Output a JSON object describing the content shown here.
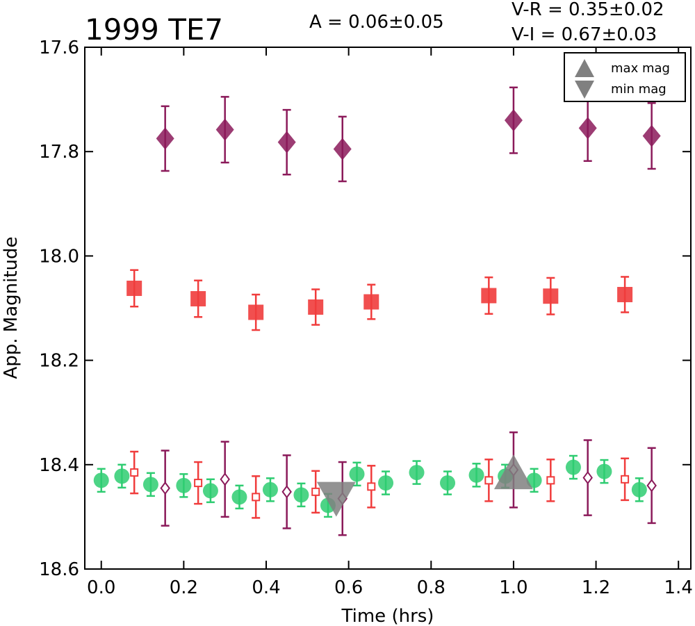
{
  "chart_data": {
    "type": "scatter",
    "title": "1999 TE7",
    "annotations": {
      "amplitude": "A  = 0.06±0.05",
      "v_r": "V-R = 0.35±0.02",
      "v_i": "V-I  = 0.67±0.03"
    },
    "xlabel": "Time (hrs)",
    "ylabel": "App. Magnitude",
    "xlim": [
      -0.04,
      1.43
    ],
    "ylim": [
      17.6,
      18.6
    ],
    "y_inverted": true,
    "x_ticks": [
      0.0,
      0.2,
      0.4,
      0.6,
      0.8,
      1.0,
      1.2,
      1.4
    ],
    "x_tick_labels": [
      "0.0",
      "0.2",
      "0.4",
      "0.6",
      "0.8",
      "1.0",
      "1.2",
      "1.4"
    ],
    "y_ticks": [
      17.6,
      17.8,
      18.0,
      18.2,
      18.4,
      18.6
    ],
    "y_tick_labels": [
      "17.6",
      "17.8",
      "18.0",
      "18.2",
      "18.4",
      "18.6"
    ],
    "grid": false,
    "legend": {
      "placement": "top-right",
      "entries": [
        {
          "label": "max mag",
          "marker": "triangle-up"
        },
        {
          "label": "min mag",
          "marker": "triangle-down"
        }
      ]
    },
    "series": [
      {
        "marker": "diamond-filled",
        "color": "#8b1a5a",
        "x": [
          0.155,
          0.3,
          0.45,
          0.585,
          1.0,
          1.18,
          1.335
        ],
        "y": [
          17.775,
          17.758,
          17.782,
          17.795,
          17.74,
          17.755,
          17.77
        ],
        "err": [
          0.062,
          0.063,
          0.062,
          0.062,
          0.063,
          0.063,
          0.063
        ]
      },
      {
        "marker": "square-filled",
        "color": "#f03c3c",
        "x": [
          0.08,
          0.235,
          0.375,
          0.52,
          0.655,
          0.94,
          1.09,
          1.27
        ],
        "y": [
          18.062,
          18.082,
          18.108,
          18.098,
          18.088,
          18.076,
          18.077,
          18.074
        ],
        "err": [
          0.035,
          0.035,
          0.034,
          0.034,
          0.033,
          0.035,
          0.035,
          0.034
        ]
      },
      {
        "marker": "circle-filled",
        "color": "#2ecc71",
        "x": [
          0.0,
          0.05,
          0.12,
          0.2,
          0.265,
          0.335,
          0.41,
          0.485,
          0.55,
          0.62,
          0.69,
          0.765,
          0.84,
          0.91,
          0.98,
          1.05,
          1.145,
          1.22,
          1.305
        ],
        "y": [
          18.43,
          18.422,
          18.438,
          18.44,
          18.45,
          18.462,
          18.448,
          18.458,
          18.478,
          18.418,
          18.435,
          18.415,
          18.435,
          18.42,
          18.422,
          18.43,
          18.405,
          18.413,
          18.448
        ],
        "err": [
          0.022,
          0.022,
          0.022,
          0.022,
          0.022,
          0.022,
          0.022,
          0.022,
          0.022,
          0.022,
          0.022,
          0.022,
          0.022,
          0.022,
          0.022,
          0.022,
          0.022,
          0.022,
          0.022
        ]
      },
      {
        "marker": "square-open",
        "color": "#f03c3c",
        "x": [
          0.08,
          0.235,
          0.375,
          0.52,
          0.655,
          0.94,
          1.09,
          1.27
        ],
        "y": [
          18.415,
          18.435,
          18.462,
          18.452,
          18.442,
          18.43,
          18.43,
          18.428
        ],
        "err": [
          0.04,
          0.04,
          0.04,
          0.04,
          0.04,
          0.04,
          0.04,
          0.04
        ]
      },
      {
        "marker": "diamond-open",
        "color": "#8b1a5a",
        "x": [
          0.155,
          0.3,
          0.45,
          0.585,
          1.0,
          1.18,
          1.335
        ],
        "y": [
          18.445,
          18.428,
          18.452,
          18.465,
          18.41,
          18.425,
          18.44
        ],
        "err": [
          0.072,
          0.072,
          0.07,
          0.07,
          0.072,
          0.072,
          0.072
        ]
      }
    ],
    "markers": {
      "max_mag": {
        "x": 1.0,
        "y": 18.415,
        "color": "#808080"
      },
      "min_mag": {
        "x": 0.57,
        "y": 18.465,
        "color": "#808080"
      }
    }
  }
}
